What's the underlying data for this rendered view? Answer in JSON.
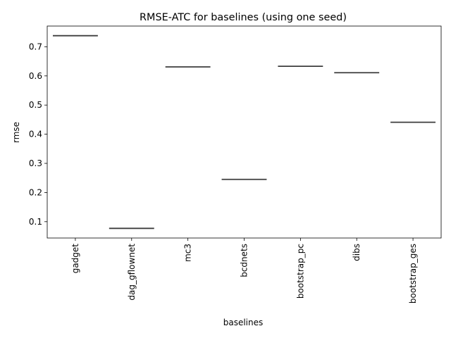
{
  "chart_data": {
    "type": "box",
    "title": "RMSE-ATC for baselines (using one seed)",
    "xlabel": "baselines",
    "ylabel": "rmse",
    "categories": [
      "gadget",
      "dag_gflownet",
      "mc3",
      "bcdnets",
      "bootstrap_pc",
      "dibs",
      "bootstrap_ges"
    ],
    "values": [
      0.738,
      0.077,
      0.631,
      0.245,
      0.633,
      0.611,
      0.441
    ],
    "ylim": [
      0.044,
      0.771
    ],
    "yticks": [
      0.1,
      0.2,
      0.3,
      0.4,
      0.5,
      0.6,
      0.7
    ],
    "ytick_labels": [
      "0.1",
      "0.2",
      "0.3",
      "0.4",
      "0.5",
      "0.6",
      "0.7"
    ],
    "grid": false,
    "legend": "none",
    "line_color": "#3d3d3d"
  }
}
